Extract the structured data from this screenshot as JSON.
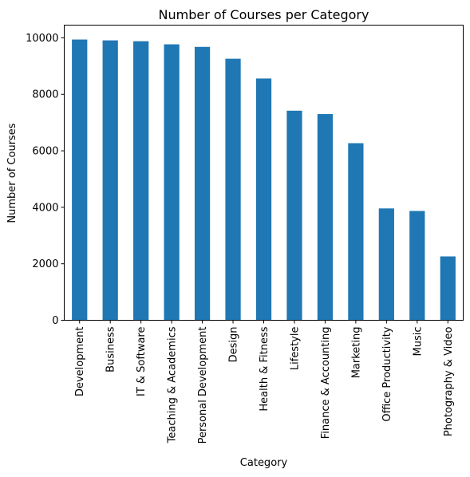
{
  "chart_data": {
    "type": "bar",
    "title": "Number of Courses per Category",
    "xlabel": "Category",
    "ylabel": "Number of Courses",
    "categories": [
      "Development",
      "Business",
      "IT & Software",
      "Teaching & Academics",
      "Personal Development",
      "Design",
      "Health & Fitness",
      "Lifestyle",
      "Finance & Accounting",
      "Marketing",
      "Office Productivity",
      "Music",
      "Photography & Video"
    ],
    "values": [
      9940,
      9910,
      9880,
      9770,
      9680,
      9260,
      8560,
      7420,
      7300,
      6270,
      3960,
      3870,
      2260
    ],
    "ylim": [
      0,
      10450
    ],
    "yticks": [
      0,
      2000,
      4000,
      6000,
      8000,
      10000
    ],
    "grid": false,
    "legend": "none",
    "bar_color": "#1f77b4"
  }
}
